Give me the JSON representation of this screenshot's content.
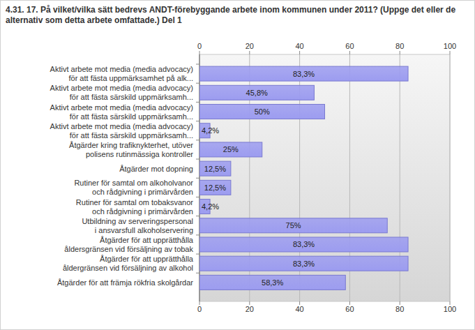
{
  "chart_data": {
    "type": "bar",
    "orientation": "horizontal",
    "title": "4.31. 17. På vilket/vilka sätt bedrevs ANDT-förebyggande arbete inom kommunen under 2011? (Uppge det eller de alternativ som detta arbete omfattade.) Del 1",
    "categories": [
      "Aktivt arbete mot media (media advocacy)\nför att fästa uppmärksamhet på alk...",
      "Aktivt arbete mot media (media advocacy)\nför att fästa särskild uppmärksamh...",
      "Aktivt arbete mot media (media advocacy)\nför att fästa särskild uppmärksamh...",
      "Aktivt arbete mot media (media advocacy)\nför att fästa särskild uppmärksamh...",
      "Åtgärder kring trafiknykterhet, utöver\npolisens rutinmässiga kontroller",
      "Åtgärder mot dopning",
      "Rutiner för samtal om alkoholvanor\noch rådgivning i primärvården",
      "Rutiner för samtal om tobaksvanor\noch rådgivning i primärvården",
      "Utbildning av serveringspersonal\ni ansvarsfull alkoholservering",
      "Åtgärder för att upprätthålla\nåldersgränsen vid försäljning av tobak",
      "Åtgärder för att upprätthålla\nåldergränsen vid försäljning av alkohol",
      "Åtgärder för att främja rökfria skolgårdar"
    ],
    "values": [
      83.3,
      45.8,
      50,
      4.2,
      25,
      12.5,
      12.5,
      4.2,
      75,
      83.3,
      83.3,
      58.3
    ],
    "value_labels": [
      "83,3%",
      "45,8%",
      "50%",
      "4,2%",
      "25%",
      "12,5%",
      "12,5%",
      "4,2%",
      "75%",
      "83,3%",
      "83,3%",
      "58,3%"
    ],
    "color": "#9c9cf0",
    "xlim": [
      0,
      100
    ],
    "xticks": [
      0,
      20,
      40,
      60,
      80,
      100
    ],
    "grid": true,
    "data_labels": true
  }
}
